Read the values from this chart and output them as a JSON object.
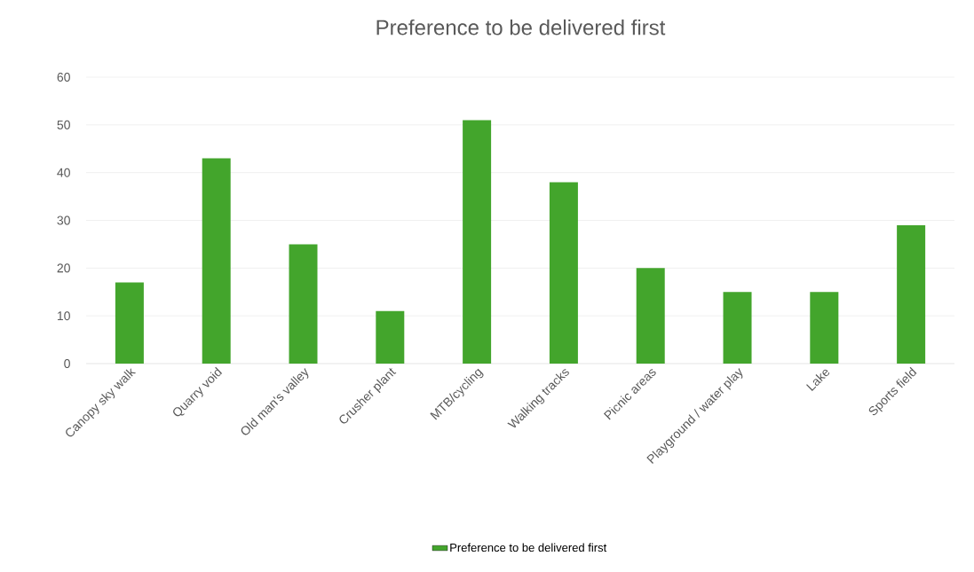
{
  "chart_data": {
    "type": "bar",
    "title": "Preference to be delivered first",
    "categories": [
      "Canopy sky walk",
      "Quarry void",
      "Old man's valley",
      "Crusher plant",
      "MTB/cycling",
      "Walking tracks",
      "Picnic areas",
      "Playground / water play",
      "Lake",
      "Sports field"
    ],
    "series": [
      {
        "name": "Preference to be delivered first",
        "color": "#43a52c",
        "values": [
          17,
          43,
          25,
          11,
          51,
          38,
          20,
          15,
          15,
          29
        ]
      }
    ],
    "ylim": [
      0,
      60
    ],
    "yticks": [
      0,
      10,
      20,
      30,
      40,
      50,
      60
    ],
    "grid": "y",
    "legend": "bottom"
  }
}
